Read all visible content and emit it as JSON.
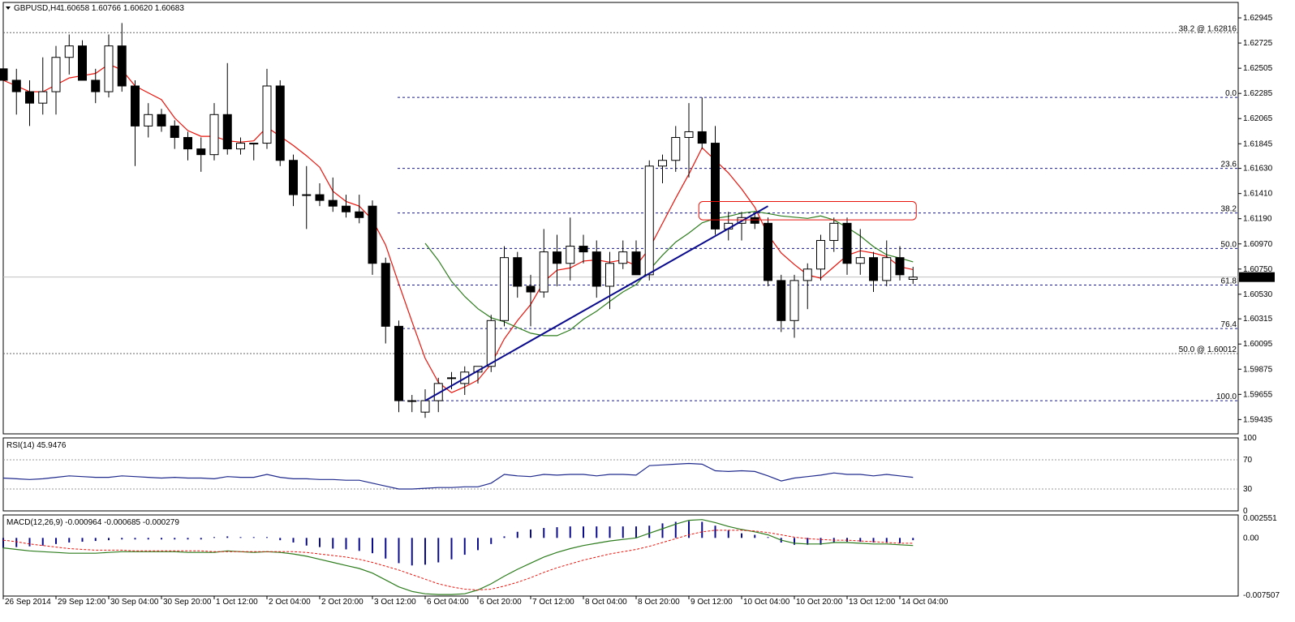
{
  "header": {
    "symbol": "GBPUSD,H4",
    "ohlc": "1.60658 1.60766 1.60620 1.60683",
    "current_price": "1.60683"
  },
  "colors": {
    "bull_body": "#ffffff",
    "bear_body": "#000000",
    "ma_fast": "#e8140c",
    "ma_slow": "#2e7d1e",
    "ma_flat": "#ffe600",
    "trendline": "#0a0a8c",
    "fib_line": "#1a1a8c",
    "rsi_line": "#1f2a8c",
    "macd_hist": "#0a0a8c",
    "macd_line": "#2e7d1e",
    "macd_signal": "#e8140c",
    "highlight_box": "#e8140c"
  },
  "chart_data": [
    {
      "type": "candlestick",
      "title": "GBPUSD,H4",
      "ylim": [
        1.5931,
        1.6308
      ],
      "price_ticks": [
        "1.62945",
        "1.62725",
        "1.62505",
        "1.62285",
        "1.62065",
        "1.61845",
        "1.61630",
        "1.61410",
        "1.61190",
        "1.60970",
        "1.60750",
        "1.60530",
        "1.60315",
        "1.60095",
        "1.59875",
        "1.59655",
        "1.59435"
      ],
      "time_labels": [
        "26 Sep 2014",
        "29 Sep 12:00",
        "30 Sep 04:00",
        "30 Sep 20:00",
        "1 Oct 12:00",
        "2 Oct 04:00",
        "2 Oct 20:00",
        "3 Oct 12:00",
        "6 Oct 04:00",
        "6 Oct 20:00",
        "7 Oct 12:00",
        "8 Oct 04:00",
        "8 Oct 20:00",
        "9 Oct 12:00",
        "10 Oct 04:00",
        "10 Oct 20:00",
        "13 Oct 12:00",
        "14 Oct 04:00"
      ],
      "candles": [
        [
          1.625,
          1.626,
          1.623,
          1.624
        ],
        [
          1.624,
          1.625,
          1.621,
          1.623
        ],
        [
          1.623,
          1.624,
          1.62,
          1.622
        ],
        [
          1.622,
          1.626,
          1.621,
          1.623
        ],
        [
          1.623,
          1.627,
          1.621,
          1.626
        ],
        [
          1.626,
          1.628,
          1.6245,
          1.627
        ],
        [
          1.627,
          1.6275,
          1.624,
          1.624
        ],
        [
          1.624,
          1.625,
          1.622,
          1.623
        ],
        [
          1.623,
          1.628,
          1.6225,
          1.627
        ],
        [
          1.627,
          1.629,
          1.623,
          1.6235
        ],
        [
          1.6235,
          1.624,
          1.6165,
          1.62
        ],
        [
          1.62,
          1.622,
          1.619,
          1.621
        ],
        [
          1.621,
          1.6215,
          1.6195,
          1.62
        ],
        [
          1.62,
          1.6205,
          1.618,
          1.619
        ],
        [
          1.619,
          1.6195,
          1.617,
          1.618
        ],
        [
          1.618,
          1.619,
          1.616,
          1.6175
        ],
        [
          1.6175,
          1.622,
          1.617,
          1.621
        ],
        [
          1.621,
          1.6255,
          1.6175,
          1.618
        ],
        [
          1.618,
          1.619,
          1.6175,
          1.6185
        ],
        [
          1.6185,
          1.6185,
          1.617,
          1.6185
        ],
        [
          1.6185,
          1.625,
          1.618,
          1.6235
        ],
        [
          1.6235,
          1.624,
          1.6165,
          1.617
        ],
        [
          1.617,
          1.6175,
          1.613,
          1.614
        ],
        [
          1.614,
          1.6165,
          1.611,
          1.614
        ],
        [
          1.614,
          1.615,
          1.613,
          1.6135
        ],
        [
          1.6135,
          1.6155,
          1.6125,
          1.613
        ],
        [
          1.613,
          1.614,
          1.612,
          1.6125
        ],
        [
          1.6125,
          1.614,
          1.6115,
          1.612
        ],
        [
          1.613,
          1.6135,
          1.607,
          1.608
        ],
        [
          1.608,
          1.6085,
          1.601,
          1.6025
        ],
        [
          1.6025,
          1.603,
          1.595,
          1.596
        ],
        [
          1.596,
          1.5965,
          1.595,
          1.596
        ],
        [
          1.595,
          1.597,
          1.5945,
          1.596
        ],
        [
          1.596,
          1.598,
          1.595,
          1.5975
        ],
        [
          1.598,
          1.5985,
          1.597,
          1.598
        ],
        [
          1.5975,
          1.599,
          1.5965,
          1.5985
        ],
        [
          1.5985,
          1.599,
          1.5975,
          1.599
        ],
        [
          1.599,
          1.6035,
          1.5985,
          1.603
        ],
        [
          1.603,
          1.6095,
          1.6025,
          1.6085
        ],
        [
          1.6085,
          1.609,
          1.605,
          1.606
        ],
        [
          1.606,
          1.607,
          1.6025,
          1.6055
        ],
        [
          1.6055,
          1.611,
          1.605,
          1.609
        ],
        [
          1.609,
          1.6105,
          1.606,
          1.608
        ],
        [
          1.608,
          1.612,
          1.6065,
          1.6095
        ],
        [
          1.6095,
          1.6105,
          1.608,
          1.609
        ],
        [
          1.609,
          1.61,
          1.605,
          1.606
        ],
        [
          1.606,
          1.609,
          1.604,
          1.608
        ],
        [
          1.608,
          1.61,
          1.6075,
          1.609
        ],
        [
          1.609,
          1.61,
          1.607,
          1.607
        ],
        [
          1.607,
          1.617,
          1.6065,
          1.6165
        ],
        [
          1.6165,
          1.6175,
          1.615,
          1.617
        ],
        [
          1.617,
          1.62,
          1.616,
          1.619
        ],
        [
          1.619,
          1.622,
          1.6155,
          1.6195
        ],
        [
          1.6195,
          1.6225,
          1.618,
          1.6185
        ],
        [
          1.6185,
          1.62,
          1.6105,
          1.611
        ],
        [
          1.611,
          1.6125,
          1.61,
          1.6115
        ],
        [
          1.6115,
          1.6125,
          1.61,
          1.612
        ],
        [
          1.612,
          1.6125,
          1.611,
          1.6115
        ],
        [
          1.6115,
          1.612,
          1.606,
          1.6065
        ],
        [
          1.6065,
          1.607,
          1.602,
          1.603
        ],
        [
          1.603,
          1.607,
          1.6015,
          1.6065
        ],
        [
          1.6065,
          1.608,
          1.604,
          1.6075
        ],
        [
          1.6075,
          1.6105,
          1.6065,
          1.61
        ],
        [
          1.61,
          1.612,
          1.609,
          1.6115
        ],
        [
          1.6115,
          1.612,
          1.607,
          1.608
        ],
        [
          1.608,
          1.611,
          1.607,
          1.6085
        ],
        [
          1.6085,
          1.609,
          1.6055,
          1.6065
        ],
        [
          1.6065,
          1.61,
          1.606,
          1.6085
        ],
        [
          1.6085,
          1.6095,
          1.6065,
          1.607
        ],
        [
          1.6066,
          1.6077,
          1.6062,
          1.6068
        ]
      ],
      "fib_levels": [
        {
          "label": "0.0",
          "value": 1.6225
        },
        {
          "label": "23.6",
          "value": 1.6163
        },
        {
          "label": "38.2",
          "value": 1.6124
        },
        {
          "label": "50.0",
          "value": 1.6093
        },
        {
          "label": "61.8",
          "value": 1.6061
        },
        {
          "label": "76.4",
          "value": 1.6023
        },
        {
          "label": "100.0",
          "value": 1.596
        }
      ],
      "extra_levels": [
        {
          "label": "38.2 @ 1.62816",
          "value": 1.62816
        },
        {
          "label": "50.0 @ 1.60012",
          "value": 1.60012
        }
      ],
      "trendline": {
        "from": [
          32,
          1.596
        ],
        "to": [
          58,
          1.613
        ]
      },
      "highlight_zone": {
        "from_index": 53,
        "to_index": 69,
        "low": 1.6118,
        "high": 1.6134
      }
    },
    {
      "type": "line",
      "title": "RSI(14) 45.9476",
      "ylim": [
        0,
        100
      ],
      "ticks": [
        "100",
        "70",
        "30",
        "0"
      ],
      "levels": [
        70,
        30
      ],
      "values": [
        45,
        44,
        43,
        44,
        46,
        48,
        47,
        46,
        46,
        48,
        47,
        46,
        45,
        46,
        45,
        45,
        44,
        47,
        46,
        46,
        50,
        46,
        44,
        44,
        43,
        43,
        42,
        42,
        38,
        34,
        30,
        30,
        31,
        32,
        32,
        33,
        33,
        38,
        50,
        48,
        47,
        50,
        49,
        50,
        50,
        48,
        50,
        50,
        49,
        62,
        63,
        64,
        65,
        64,
        55,
        54,
        55,
        54,
        48,
        41,
        45,
        47,
        49,
        52,
        50,
        50,
        48,
        50,
        48,
        46
      ]
    },
    {
      "type": "bar",
      "title": "MACD(12,26,9) -0.000964 -0.000685 -0.000279",
      "ticks": [
        "0.002551",
        "0.00",
        "-0.007507"
      ],
      "ylim": [
        -0.0076,
        0.003
      ],
      "histogram": [
        -0.0013,
        -0.0012,
        -0.0011,
        -0.001,
        -0.0008,
        -0.0006,
        -0.0005,
        -0.0004,
        -0.0003,
        -0.0002,
        -0.0002,
        -0.0002,
        -0.0002,
        -0.0002,
        -0.0002,
        -0.0002,
        -0.0001,
        0.0002,
        0.0,
        -0.0001,
        -0.0001,
        -0.0003,
        -0.0006,
        -0.001,
        -0.0012,
        -0.0014,
        -0.0015,
        -0.0017,
        -0.002,
        -0.0027,
        -0.0033,
        -0.0036,
        -0.0035,
        -0.0032,
        -0.0028,
        -0.0022,
        -0.0016,
        -0.0008,
        0.0002,
        0.0008,
        0.0011,
        0.0013,
        0.0014,
        0.0015,
        0.0015,
        0.0015,
        0.0015,
        0.0015,
        0.0015,
        0.0016,
        0.0019,
        0.0021,
        0.0022,
        0.0021,
        0.0016,
        0.001,
        0.0006,
        0.0004,
        0.0,
        -0.0006,
        -0.0009,
        -0.0009,
        -0.0009,
        -0.0006,
        -0.0005,
        -0.0005,
        -0.0006,
        -0.0006,
        -0.0007,
        -0.0003
      ],
      "macd_line": [
        -0.0013,
        -0.0015,
        -0.0017,
        -0.0018,
        -0.0019,
        -0.002,
        -0.002,
        -0.002,
        -0.0019,
        -0.0018,
        -0.0018,
        -0.0018,
        -0.0018,
        -0.0018,
        -0.0019,
        -0.0019,
        -0.0019,
        -0.0017,
        -0.0018,
        -0.0019,
        -0.0018,
        -0.0019,
        -0.0021,
        -0.0024,
        -0.0028,
        -0.0032,
        -0.0036,
        -0.004,
        -0.0046,
        -0.0055,
        -0.0064,
        -0.007,
        -0.0073,
        -0.0074,
        -0.0074,
        -0.0073,
        -0.0068,
        -0.006,
        -0.005,
        -0.0041,
        -0.0033,
        -0.0025,
        -0.0019,
        -0.0014,
        -0.001,
        -0.0007,
        -0.0004,
        -0.0002,
        0.0,
        0.0006,
        0.0012,
        0.0018,
        0.0023,
        0.0024,
        0.002,
        0.0015,
        0.0011,
        0.0008,
        0.0004,
        -0.0003,
        -0.0007,
        -0.0008,
        -0.0008,
        -0.0006,
        -0.0006,
        -0.0007,
        -0.0008,
        -0.0008,
        -0.0009,
        -0.001
      ],
      "signal_line": [
        -0.0003,
        -0.0005,
        -0.0008,
        -0.001,
        -0.0012,
        -0.0014,
        -0.0015,
        -0.0016,
        -0.0016,
        -0.0016,
        -0.0017,
        -0.0017,
        -0.0017,
        -0.0017,
        -0.0017,
        -0.0017,
        -0.0018,
        -0.0018,
        -0.0018,
        -0.0018,
        -0.0018,
        -0.0018,
        -0.0018,
        -0.0019,
        -0.0021,
        -0.0023,
        -0.0025,
        -0.0028,
        -0.0032,
        -0.0037,
        -0.0042,
        -0.0048,
        -0.0054,
        -0.006,
        -0.0064,
        -0.0067,
        -0.0068,
        -0.0067,
        -0.0063,
        -0.0058,
        -0.0052,
        -0.0045,
        -0.0039,
        -0.0034,
        -0.0029,
        -0.0025,
        -0.0021,
        -0.0018,
        -0.0015,
        -0.0011,
        -0.0006,
        -0.0001,
        0.0004,
        0.0008,
        0.001,
        0.001,
        0.001,
        0.0009,
        0.0007,
        0.0004,
        0.0001,
        -0.0001,
        -0.0002,
        -0.0003,
        -0.0003,
        -0.0004,
        -0.0005,
        -0.0006,
        -0.0007,
        -0.0007
      ]
    }
  ]
}
